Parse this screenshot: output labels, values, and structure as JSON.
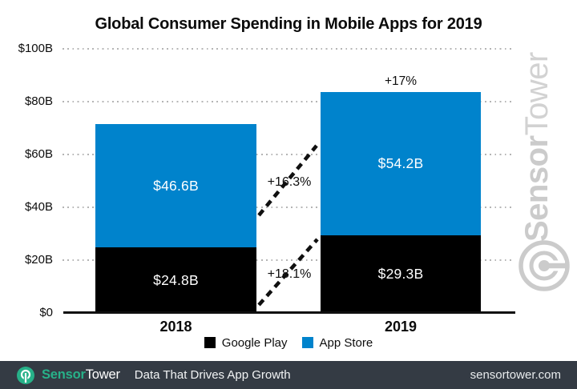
{
  "title": "Global Consumer Spending in Mobile Apps for 2019",
  "colors": {
    "app_store": "#0083cc",
    "google_play": "#000000",
    "accent_teal": "#27b189",
    "footer_bg": "#343b44",
    "watermark": "#cbcbcb"
  },
  "chart_data": {
    "type": "bar",
    "stacked": true,
    "title": "Global Consumer Spending in Mobile Apps for 2019",
    "categories": [
      "2018",
      "2019"
    ],
    "series": [
      {
        "name": "Google Play",
        "color": "#000000",
        "values": [
          24.8,
          29.3
        ],
        "labels": [
          "$24.8B",
          "$29.3B"
        ]
      },
      {
        "name": "App Store",
        "color": "#0083cc",
        "values": [
          46.6,
          54.2
        ],
        "labels": [
          "$46.6B",
          "$54.2B"
        ]
      }
    ],
    "totals": [
      71.4,
      83.5
    ],
    "ylim": [
      0,
      100
    ],
    "yticks": [
      {
        "label": "$0",
        "value": 0
      },
      {
        "label": "$20B",
        "value": 20
      },
      {
        "label": "$40B",
        "value": 40
      },
      {
        "label": "$60B",
        "value": 60
      },
      {
        "label": "$80B",
        "value": 80
      },
      {
        "label": "$100B",
        "value": 100
      }
    ],
    "grid": "dotted-horizontal",
    "legend_position": "bottom",
    "annotations": {
      "total_growth_2019": "+17%",
      "app_store_growth": "+16.3%",
      "google_play_growth": "+18.1%"
    }
  },
  "legend": {
    "items": [
      {
        "label": "Google Play"
      },
      {
        "label": "App Store"
      }
    ]
  },
  "watermark": {
    "brand_bold": "Sensor",
    "brand_light": "Tower"
  },
  "footer": {
    "brand_bold": "Sensor",
    "brand_light": "Tower",
    "tagline": "Data That Drives App Growth",
    "website": "sensortower.com"
  }
}
